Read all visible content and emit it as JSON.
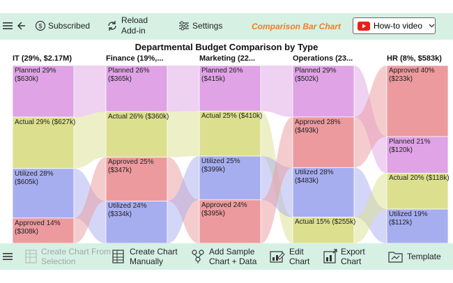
{
  "top_bar": {
    "subscribed_label": "Subscribed",
    "reload_line1": "Reload",
    "reload_line2": "Add-in",
    "settings_label": "Settings",
    "chart_name": "Comparison Bar Chart",
    "howto_label": "How-to video"
  },
  "bottom_bar": {
    "create_from_selection_line1": "Create Chart From",
    "create_from_selection_line2": "Selection",
    "create_manually_line1": "Create Chart",
    "create_manually_line2": "Manually",
    "add_sample_line1": "Add Sample",
    "add_sample_line2": "Chart + Data",
    "edit_chart_line1": "Edit",
    "edit_chart_line2": "Chart",
    "export_chart_line1": "Export",
    "export_chart_line2": "Chart",
    "template_label": "Template"
  },
  "colors": {
    "accent": "#f47c20",
    "toolbar_bg": "#d6f1e4",
    "planned": "#e0a3e6",
    "actual": "#dce08e",
    "utilized": "#a7aef0",
    "approved": "#ec9a9e"
  },
  "chart_data": {
    "type": "bar",
    "title": "Departmental Budget Comparison by Type",
    "columns": [
      {
        "header": "IT (29%, $2.17M)",
        "segments": [
          {
            "type": "planned",
            "label_l1": "Planned 29%",
            "label_l2": "($630k)",
            "value": 630
          },
          {
            "type": "actual",
            "label_l1": "Actual 29% ($627k)",
            "label_l2": "",
            "value": 627
          },
          {
            "type": "utilized",
            "label_l1": "Utilized 28%",
            "label_l2": "($605k)",
            "value": 605
          },
          {
            "type": "approved",
            "label_l1": "Approved 14%",
            "label_l2": "($308k)",
            "value": 308
          }
        ]
      },
      {
        "header": "Finance (19%,...",
        "segments": [
          {
            "type": "planned",
            "label_l1": "Planned 26%",
            "label_l2": "($365k)",
            "value": 365
          },
          {
            "type": "actual",
            "label_l1": "Actual 26% ($360k)",
            "label_l2": "",
            "value": 360
          },
          {
            "type": "approved",
            "label_l1": "Approved 25%",
            "label_l2": "($347k)",
            "value": 347
          },
          {
            "type": "utilized",
            "label_l1": "Utilized 24%",
            "label_l2": "($334k)",
            "value": 334
          }
        ]
      },
      {
        "header": "Marketing (22...",
        "segments": [
          {
            "type": "planned",
            "label_l1": "Planned 26%",
            "label_l2": "($415k)",
            "value": 415
          },
          {
            "type": "actual",
            "label_l1": "Actual 25% ($410k)",
            "label_l2": "",
            "value": 410
          },
          {
            "type": "utilized",
            "label_l1": "Utilized 25%",
            "label_l2": "($399k)",
            "value": 399
          },
          {
            "type": "approved",
            "label_l1": "Approved 24%",
            "label_l2": "($395k)",
            "value": 395
          }
        ]
      },
      {
        "header": "Operations (23...",
        "segments": [
          {
            "type": "planned",
            "label_l1": "Planned 29%",
            "label_l2": "($502k)",
            "value": 502
          },
          {
            "type": "approved",
            "label_l1": "Approved 28%",
            "label_l2": "($493k)",
            "value": 493
          },
          {
            "type": "utilized",
            "label_l1": "Utilized 28%",
            "label_l2": "($483k)",
            "value": 483
          },
          {
            "type": "actual",
            "label_l1": "Actual 15% ($255k)",
            "label_l2": "",
            "value": 255
          }
        ]
      },
      {
        "header": "HR (8%, $583k)",
        "segments": [
          {
            "type": "approved",
            "label_l1": "Approved 40%",
            "label_l2": "($233k)",
            "value": 233
          },
          {
            "type": "planned",
            "label_l1": "Planned 21%",
            "label_l2": "($120k)",
            "value": 120
          },
          {
            "type": "actual",
            "label_l1": "Actual 20% ($118k)",
            "label_l2": "",
            "value": 118
          },
          {
            "type": "utilized",
            "label_l1": "Utilized 19%",
            "label_l2": "($112k)",
            "value": 112
          }
        ]
      }
    ]
  }
}
